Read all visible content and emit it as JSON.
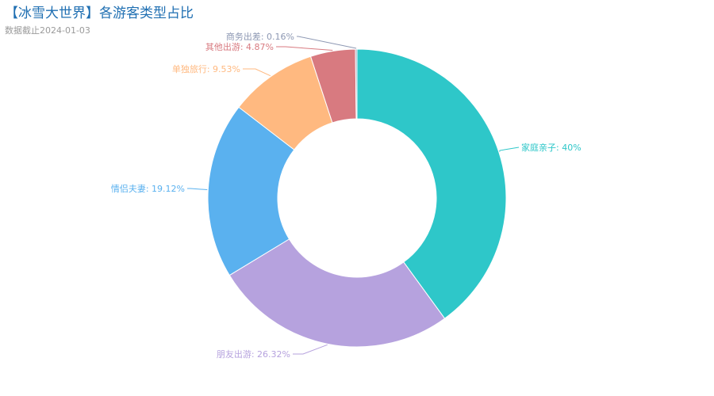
{
  "chart_data": {
    "type": "pie",
    "variant": "donut",
    "title": "【冰雪大世界】各游客类型占比",
    "subtitle": "数据截止2024-01-03",
    "slices": [
      {
        "name": "家庭亲子",
        "value": 40,
        "label": "家庭亲子: 40%",
        "color": "#2ec7c9"
      },
      {
        "name": "朋友出游",
        "value": 26.32,
        "label": "朋友出游: 26.32%",
        "color": "#b6a2de"
      },
      {
        "name": "情侣夫妻",
        "value": 19.12,
        "label": "情侣夫妻: 19.12%",
        "color": "#5ab1ef"
      },
      {
        "name": "单独旅行",
        "value": 9.53,
        "label": "单独旅行: 9.53%",
        "color": "#ffb980"
      },
      {
        "name": "其他出游",
        "value": 4.87,
        "label": "其他出游: 4.87%",
        "color": "#d87a80"
      },
      {
        "name": "商务出差",
        "value": 0.16,
        "label": "商务出差: 0.16%",
        "color": "#8d98b3"
      }
    ]
  }
}
